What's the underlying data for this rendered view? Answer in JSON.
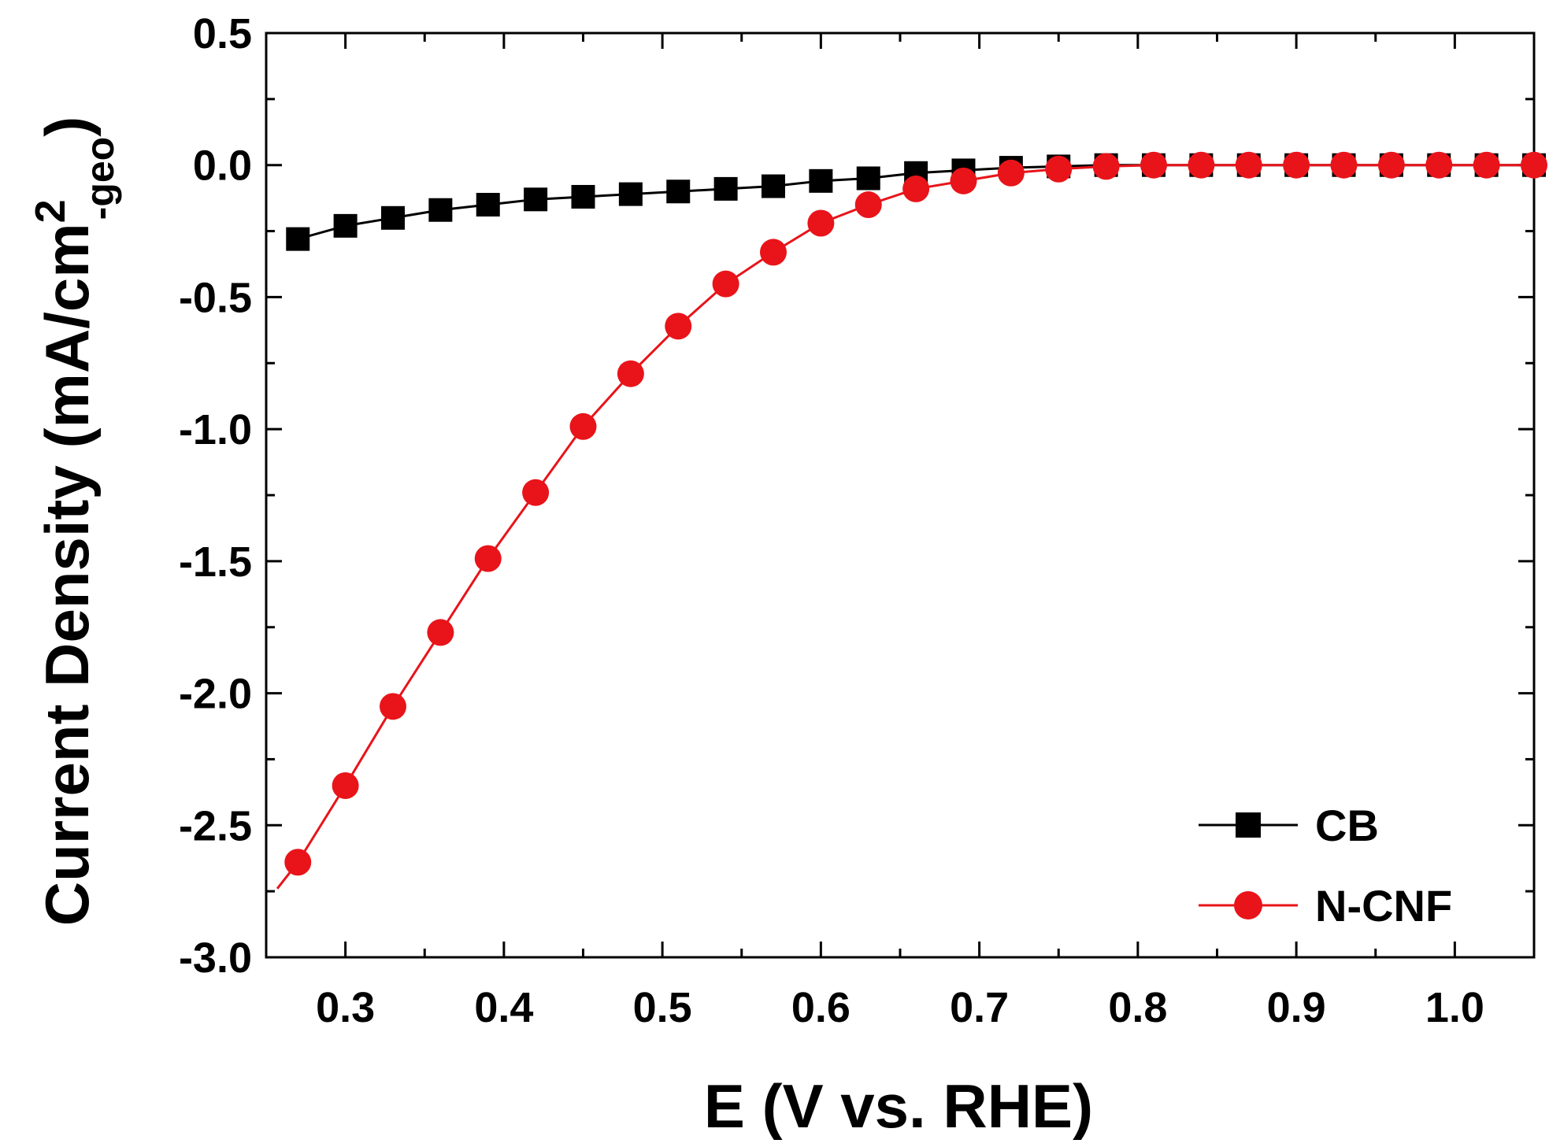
{
  "chart_data": {
    "type": "line",
    "xlabel": "E (V vs. RHE)",
    "ylabel": {
      "main": "Current Density (mA/cm",
      "sup": "2",
      "sub": "-geo",
      "close": ")"
    },
    "xlim": [
      0.25,
      1.05
    ],
    "ylim": [
      -3.0,
      0.5
    ],
    "x_ticks": [
      0.3,
      0.4,
      0.5,
      0.6,
      0.7,
      0.8,
      0.9,
      1.0
    ],
    "x_tick_labels": [
      "0.3",
      "0.4",
      "0.5",
      "0.6",
      "0.7",
      "0.8",
      "0.9",
      "1.0"
    ],
    "y_ticks": [
      0.5,
      0.0,
      -0.5,
      -1.0,
      -1.5,
      -2.0,
      -2.5,
      -3.0
    ],
    "y_tick_labels": [
      "0.5",
      "0.0",
      "-0.5",
      "-1.0",
      "-1.5",
      "-2.0",
      "-2.5",
      "-3.0"
    ],
    "grid": false,
    "legend_position": "bottom-right",
    "x": [
      0.27,
      0.3,
      0.33,
      0.36,
      0.39,
      0.42,
      0.45,
      0.48,
      0.51,
      0.54,
      0.57,
      0.6,
      0.63,
      0.66,
      0.69,
      0.72,
      0.75,
      0.78,
      0.81,
      0.84,
      0.87,
      0.9,
      0.93,
      0.96,
      0.99,
      1.02,
      1.05
    ],
    "series": [
      {
        "name": "CB",
        "color": "#000000",
        "marker": "square",
        "values": [
          -0.28,
          -0.23,
          -0.2,
          -0.17,
          -0.15,
          -0.13,
          -0.12,
          -0.11,
          -0.1,
          -0.09,
          -0.08,
          -0.06,
          -0.05,
          -0.03,
          -0.02,
          -0.01,
          -0.005,
          0,
          0,
          0,
          0,
          0,
          0,
          0,
          0,
          0,
          0
        ]
      },
      {
        "name": "N-CNF",
        "color": "#e8141a",
        "marker": "circle",
        "start": [
          0.257,
          -2.74
        ],
        "values": [
          -2.64,
          -2.35,
          -2.05,
          -1.77,
          -1.49,
          -1.24,
          -0.99,
          -0.79,
          -0.61,
          -0.45,
          -0.33,
          -0.22,
          -0.15,
          -0.09,
          -0.06,
          -0.03,
          -0.015,
          -0.005,
          0,
          0,
          0,
          0,
          0,
          0,
          0,
          0,
          0
        ]
      }
    ]
  }
}
